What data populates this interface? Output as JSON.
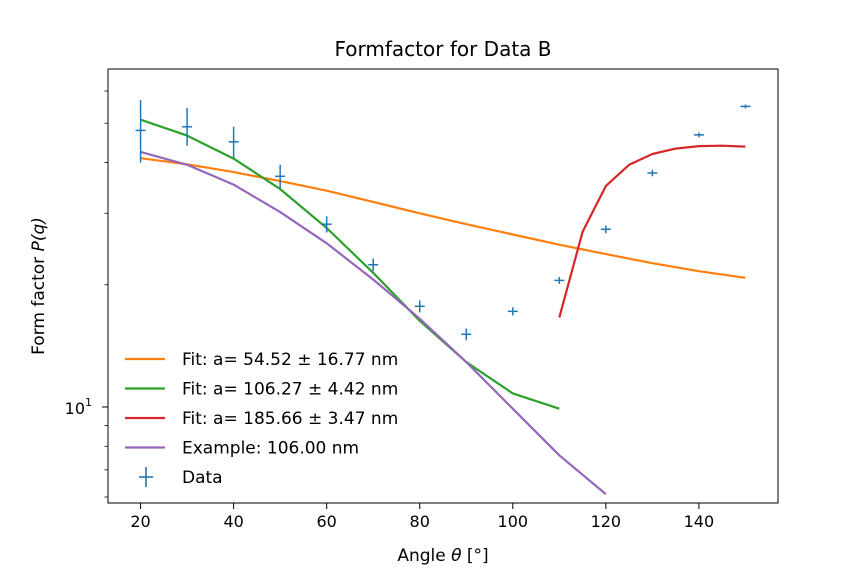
{
  "chart_data": {
    "type": "line",
    "title": "Formfactor for Data B",
    "xlabel_prefix": "Angle ",
    "xlabel_symbol": "θ",
    "xlabel_suffix": " [°]",
    "ylabel_prefix": "Form factor ",
    "ylabel_symbol": "P(q)",
    "xlim": [
      13,
      157
    ],
    "ylim": [
      5.8,
      68
    ],
    "yscale": "log",
    "x_ticks": [
      20,
      40,
      60,
      80,
      100,
      120,
      140
    ],
    "x_tick_labels": [
      "20",
      "40",
      "60",
      "80",
      "100",
      "120",
      "140"
    ],
    "y_major_ticks": [
      10
    ],
    "y_major_tick_labels": [
      "10"
    ],
    "y_minor_ticks": [
      6,
      7,
      8,
      9,
      20,
      30,
      40,
      50,
      60
    ],
    "grid": false,
    "legend_placement": "lower-left",
    "series": [
      {
        "name": "Fit: a= 54.52 ± 16.77 nm",
        "color": "#ff7f0e",
        "x": [
          20,
          30,
          40,
          50,
          60,
          70,
          80,
          90,
          100,
          110,
          120,
          130,
          140,
          150
        ],
        "y": [
          41.0,
          39.6,
          37.9,
          36.0,
          34.1,
          32.0,
          30.0,
          28.2,
          26.6,
          25.1,
          23.8,
          22.6,
          21.6,
          20.8
        ]
      },
      {
        "name": "Fit: a= 106.27 ± 4.42 nm",
        "color": "#2ca02c",
        "x": [
          20,
          30,
          40,
          50,
          60,
          70,
          80,
          90,
          100,
          110
        ],
        "y": [
          51.0,
          46.6,
          40.9,
          34.4,
          27.6,
          21.4,
          16.3,
          12.9,
          10.8,
          9.9
        ]
      },
      {
        "name": "Fit: a= 185.66 ± 3.47 nm",
        "color": "#d62728",
        "x": [
          110,
          115,
          120,
          125,
          130,
          135,
          140,
          145,
          150
        ],
        "y": [
          16.6,
          27.0,
          35.0,
          39.5,
          42.0,
          43.3,
          43.9,
          44.0,
          43.8
        ]
      },
      {
        "name": "Example: 106.00 nm",
        "color": "#9467bd",
        "x": [
          20,
          30,
          40,
          50,
          60,
          70,
          80,
          90,
          100,
          110,
          120
        ],
        "y": [
          42.5,
          39.5,
          35.3,
          30.2,
          25.3,
          20.6,
          16.5,
          12.9,
          9.9,
          7.6,
          6.1
        ]
      }
    ],
    "data_points": {
      "name": "Data",
      "color": "#1f77b4",
      "x": [
        20,
        30,
        40,
        50,
        60,
        70,
        80,
        90,
        100,
        110,
        120,
        130,
        140,
        150
      ],
      "y": [
        48.0,
        49.0,
        45.0,
        37.0,
        28.2,
        22.4,
        17.7,
        15.1,
        17.2,
        20.5,
        27.4,
        37.7,
        46.8,
        55.0
      ],
      "yerr_low": [
        40.0,
        44.0,
        41.0,
        34.5,
        26.9,
        21.6,
        17.1,
        14.6,
        16.8,
        20.1,
        26.8,
        37.0,
        46.2,
        54.4
      ],
      "yerr_high": [
        57.0,
        54.5,
        49.0,
        39.5,
        29.5,
        23.2,
        18.3,
        15.6,
        17.6,
        20.9,
        28.0,
        38.4,
        47.4,
        55.6
      ]
    }
  }
}
